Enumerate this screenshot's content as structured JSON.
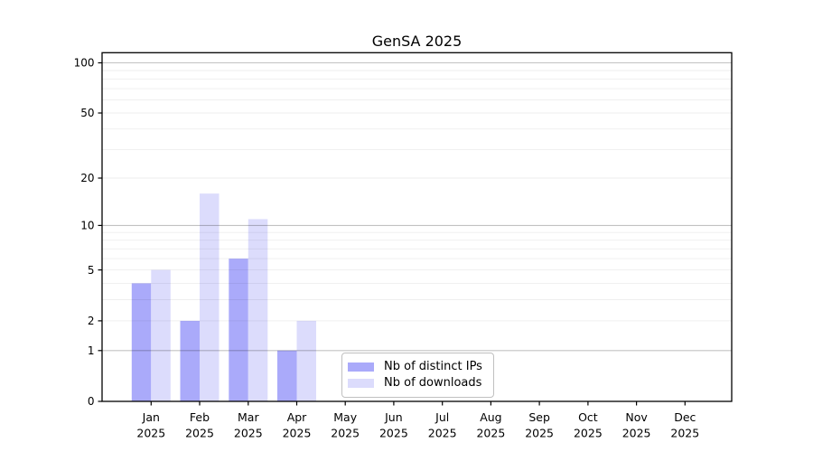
{
  "chart_data": {
    "type": "bar",
    "title": "GenSA 2025",
    "categories": [
      "Jan",
      "Feb",
      "Mar",
      "Apr",
      "May",
      "Jun",
      "Jul",
      "Aug",
      "Sep",
      "Oct",
      "Nov",
      "Dec"
    ],
    "x_tick_year": "2025",
    "series": [
      {
        "name": "Nb of distinct IPs",
        "color": "#aaaafa",
        "values": [
          4,
          2,
          6,
          1,
          0,
          0,
          0,
          0,
          0,
          0,
          0,
          0
        ]
      },
      {
        "name": "Nb of downloads",
        "color": "#dcdcfc",
        "values": [
          5,
          16,
          11,
          2,
          0,
          0,
          0,
          0,
          0,
          0,
          0,
          0
        ]
      }
    ],
    "y_axis": {
      "scale": "log1p",
      "ylim": [
        0,
        115
      ],
      "ticks": [
        0,
        1,
        2,
        5,
        10,
        20,
        50,
        100
      ],
      "major_gridlines": [
        1,
        10,
        100
      ],
      "minor_gridlines": [
        2,
        3,
        4,
        5,
        6,
        7,
        8,
        9,
        20,
        30,
        40,
        50,
        60,
        70,
        80,
        90
      ]
    },
    "legend": {
      "position": "inside-bottom-center",
      "entries": [
        "Nb of distinct IPs",
        "Nb of downloads"
      ]
    },
    "grid": true,
    "colors": {
      "axis": "#000000",
      "major_grid": "rgba(0,0,0,0.24)",
      "minor_grid": "rgba(0,0,0,0.065)",
      "legend_border": "#c0c0c0"
    }
  }
}
